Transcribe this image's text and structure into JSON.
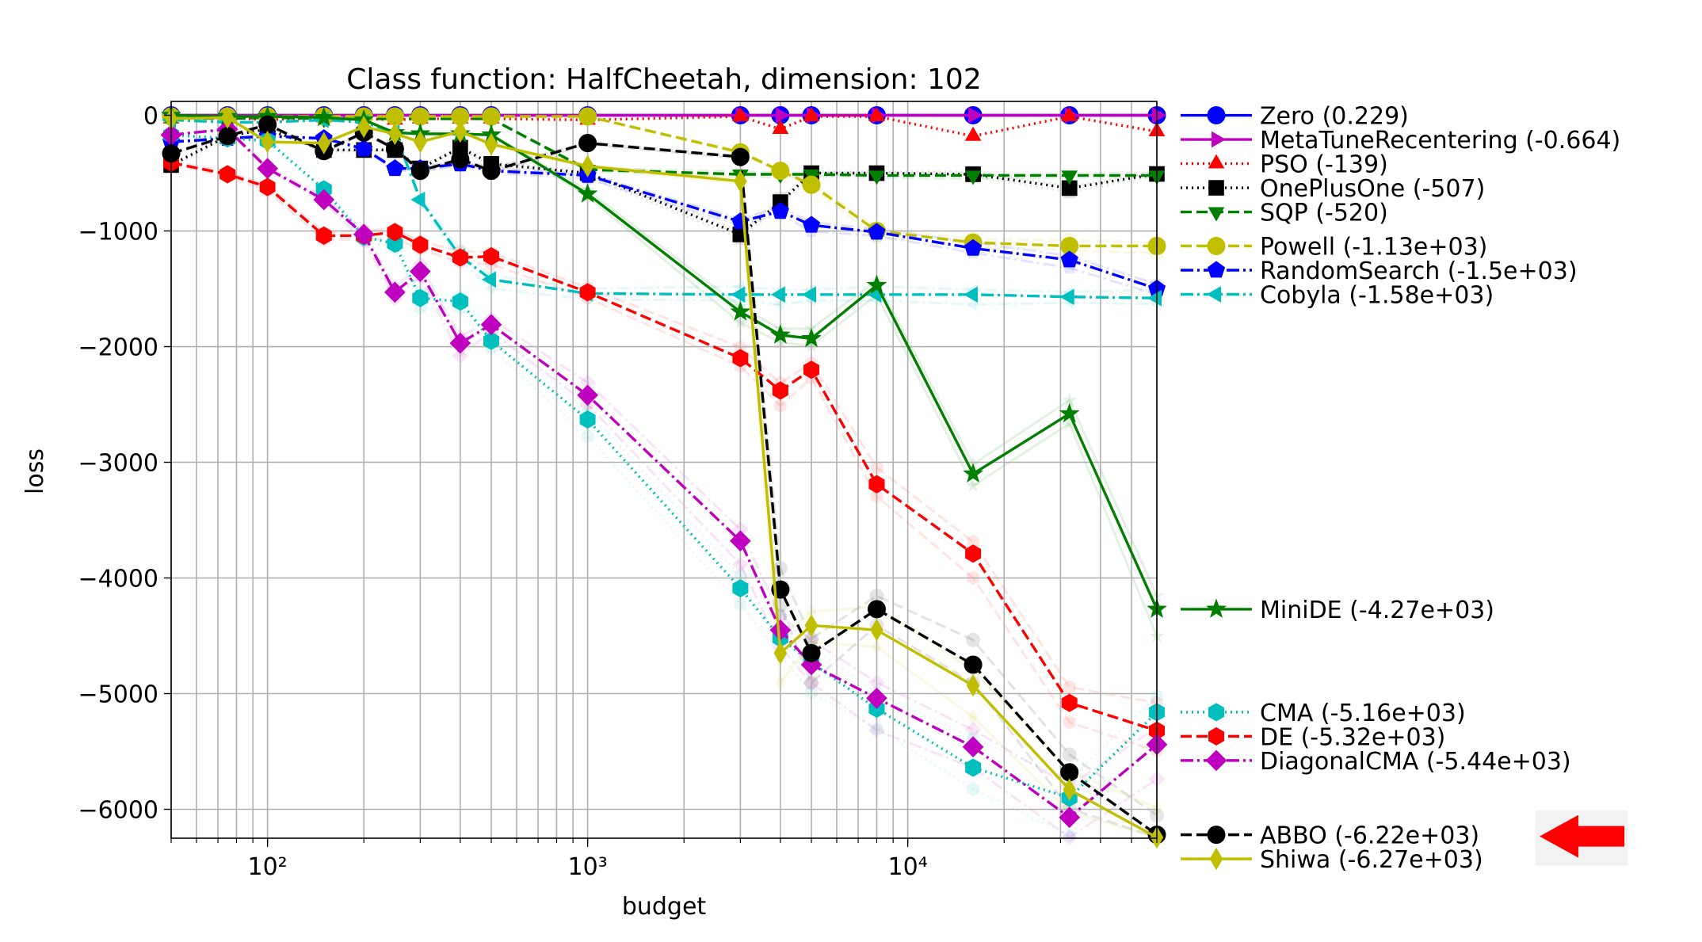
{
  "chart_data": {
    "type": "line",
    "title": "Class function: HalfCheetah, dimension: 102",
    "xlabel": "budget",
    "ylabel": "loss",
    "x_scale": "log",
    "xlim": [
      50,
      60000
    ],
    "ylim": [
      -6250,
      120
    ],
    "grid": true,
    "legend_placement": "outside-right",
    "x_major_ticks": [
      {
        "value": 100,
        "label": "10²"
      },
      {
        "value": 1000,
        "label": "10³"
      },
      {
        "value": 10000,
        "label": "10⁴"
      }
    ],
    "y_ticks": [
      {
        "value": 0,
        "label": "0"
      },
      {
        "value": -1000,
        "label": "−1000"
      },
      {
        "value": -2000,
        "label": "−2000"
      },
      {
        "value": -3000,
        "label": "−3000"
      },
      {
        "value": -4000,
        "label": "−4000"
      },
      {
        "value": -5000,
        "label": "−5000"
      },
      {
        "value": -6000,
        "label": "−6000"
      }
    ],
    "series": [
      {
        "name": "Zero (0.229)",
        "color": "#0000ff",
        "dash": "",
        "marker": "circle",
        "x": [
          50,
          75,
          100,
          150,
          200,
          250,
          300,
          400,
          500,
          1000,
          3000,
          4000,
          5000,
          8000,
          16000,
          32000,
          60000
        ],
        "y": [
          0,
          0,
          0,
          0,
          0,
          0,
          0,
          0,
          0,
          0,
          0,
          0,
          0,
          0,
          0,
          0,
          0
        ]
      },
      {
        "name": "MetaTuneRecentering (-0.664)",
        "color": "#bf00bf",
        "dash": "",
        "marker": "triangle-right",
        "x": [
          50,
          75,
          100,
          150,
          200,
          250,
          300,
          400,
          500,
          1000,
          3000,
          4000,
          5000,
          8000,
          16000,
          32000,
          60000
        ],
        "y": [
          0,
          0,
          0,
          0,
          0,
          0,
          0,
          0,
          0,
          0,
          0,
          0,
          0,
          0,
          0,
          0,
          0
        ]
      },
      {
        "name": "PSO (-139)",
        "color": "#ff0000",
        "dash": "2,5",
        "marker": "triangle-up",
        "x": [
          50,
          75,
          100,
          150,
          200,
          250,
          300,
          400,
          500,
          1000,
          3000,
          4000,
          5000,
          8000,
          16000,
          32000,
          60000
        ],
        "y": [
          -30,
          -20,
          -40,
          -20,
          -30,
          -40,
          -30,
          -30,
          -30,
          -40,
          -10,
          -120,
          -10,
          -10,
          -180,
          -10,
          -140
        ]
      },
      {
        "name": "OnePlusOne (-507)",
        "color": "#000000",
        "dash": "2,5",
        "marker": "square",
        "x": [
          50,
          75,
          100,
          150,
          200,
          250,
          300,
          400,
          500,
          1000,
          3000,
          4000,
          5000,
          8000,
          16000,
          32000,
          60000
        ],
        "y": [
          -430,
          -180,
          -120,
          -300,
          -300,
          -300,
          -460,
          -280,
          -420,
          -500,
          -1030,
          -750,
          -500,
          -500,
          -510,
          -630,
          -507
        ]
      },
      {
        "name": "SQP (-520)",
        "color": "#007f00",
        "dash": "14,6",
        "marker": "triangle-down",
        "x": [
          50,
          75,
          100,
          150,
          200,
          250,
          300,
          400,
          500,
          1000,
          3000,
          4000,
          5000,
          8000,
          16000,
          32000,
          60000
        ],
        "y": [
          -20,
          -30,
          -20,
          -30,
          -30,
          -30,
          -30,
          -30,
          -30,
          -470,
          -510,
          -510,
          -510,
          -520,
          -520,
          -520,
          -520
        ]
      },
      {
        "name": "Powell (-1.13e+03)",
        "color": "#bfbf00",
        "dash": "14,6",
        "marker": "circle",
        "x": [
          50,
          75,
          100,
          150,
          200,
          250,
          300,
          400,
          500,
          1000,
          3000,
          4000,
          5000,
          8000,
          16000,
          32000,
          60000
        ],
        "y": [
          -10,
          -10,
          -10,
          -10,
          -10,
          -10,
          -10,
          -10,
          -10,
          -10,
          -320,
          -480,
          -600,
          -1000,
          -1100,
          -1130,
          -1130
        ]
      },
      {
        "name": "RandomSearch (-1.5e+03)",
        "color": "#0000ff",
        "dash": "16,5,3,5",
        "marker": "pentagon",
        "x": [
          50,
          75,
          100,
          150,
          200,
          250,
          300,
          400,
          500,
          1000,
          3000,
          4000,
          5000,
          8000,
          16000,
          32000,
          60000
        ],
        "y": [
          -230,
          -200,
          -180,
          -200,
          -290,
          -460,
          -460,
          -420,
          -480,
          -520,
          -920,
          -830,
          -950,
          -1010,
          -1150,
          -1250,
          -1500
        ]
      },
      {
        "name": "Cobyla (-1.58e+03)",
        "color": "#00bfbf",
        "dash": "16,5,3,5",
        "marker": "triangle-left",
        "x": [
          50,
          75,
          100,
          150,
          200,
          250,
          300,
          400,
          500,
          1000,
          3000,
          4000,
          5000,
          8000,
          16000,
          32000,
          60000
        ],
        "y": [
          -40,
          -60,
          -60,
          -40,
          -60,
          -150,
          -730,
          -1220,
          -1420,
          -1540,
          -1550,
          -1550,
          -1550,
          -1550,
          -1550,
          -1570,
          -1580
        ]
      },
      {
        "name": "MiniDE (-4.27e+03)",
        "color": "#007f00",
        "dash": "",
        "marker": "star",
        "x": [
          50,
          75,
          100,
          150,
          200,
          250,
          300,
          400,
          500,
          1000,
          3000,
          4000,
          5000,
          8000,
          16000,
          32000,
          60000
        ],
        "y": [
          0,
          -10,
          -10,
          -20,
          -40,
          -150,
          -160,
          -160,
          -170,
          -680,
          -1700,
          -1900,
          -1930,
          -1470,
          -3100,
          -2580,
          -4270
        ]
      },
      {
        "name": "CMA (-5.16e+03)",
        "color": "#00bfbf",
        "dash": "2,5",
        "marker": "hexagon",
        "x": [
          50,
          75,
          100,
          150,
          200,
          250,
          300,
          400,
          500,
          1000,
          3000,
          4000,
          5000,
          8000,
          16000,
          32000,
          60000
        ],
        "y": [
          -170,
          -200,
          -220,
          -640,
          -1050,
          -1110,
          -1580,
          -1610,
          -1950,
          -2630,
          -4090,
          -4520,
          -4730,
          -5130,
          -5640,
          -5900,
          -5160
        ]
      },
      {
        "name": "DE (-5.32e+03)",
        "color": "#ff0000",
        "dash": "14,6",
        "marker": "hexagon",
        "x": [
          50,
          75,
          100,
          150,
          200,
          250,
          300,
          400,
          500,
          1000,
          3000,
          4000,
          5000,
          8000,
          16000,
          32000,
          60000
        ],
        "y": [
          -410,
          -510,
          -620,
          -1040,
          -1040,
          -1010,
          -1120,
          -1230,
          -1220,
          -1530,
          -2100,
          -2380,
          -2200,
          -3190,
          -3790,
          -5080,
          -5320
        ]
      },
      {
        "name": "DiagonalCMA (-5.44e+03)",
        "color": "#bf00bf",
        "dash": "16,5,3,5",
        "marker": "diamond",
        "x": [
          50,
          75,
          100,
          150,
          200,
          250,
          300,
          400,
          500,
          1000,
          3000,
          4000,
          5000,
          8000,
          16000,
          32000,
          60000
        ],
        "y": [
          -170,
          -120,
          -460,
          -730,
          -1030,
          -1530,
          -1350,
          -1970,
          -1810,
          -2420,
          -3680,
          -4450,
          -4750,
          -5040,
          -5460,
          -6070,
          -5440
        ]
      },
      {
        "name": "ABBO (-6.22e+03)",
        "color": "#000000",
        "dash": "14,6",
        "marker": "circle",
        "x": [
          50,
          75,
          100,
          150,
          200,
          250,
          300,
          400,
          500,
          1000,
          3000,
          4000,
          5000,
          8000,
          16000,
          32000,
          60000
        ],
        "y": [
          -330,
          -180,
          -80,
          -310,
          -150,
          -290,
          -480,
          -380,
          -480,
          -240,
          -360,
          -4100,
          -4650,
          -4270,
          -4750,
          -5680,
          -6220
        ]
      },
      {
        "name": "Shiwa (-6.27e+03)",
        "color": "#bfbf00",
        "dash": "",
        "marker": "thin-diamond",
        "x": [
          50,
          75,
          100,
          150,
          200,
          250,
          300,
          400,
          500,
          1000,
          3000,
          4000,
          5000,
          8000,
          16000,
          32000,
          60000
        ],
        "y": [
          -30,
          -20,
          -230,
          -240,
          -100,
          -160,
          -230,
          -140,
          -250,
          -440,
          -570,
          -4650,
          -4410,
          -4450,
          -4930,
          -5830,
          -6270
        ]
      }
    ]
  },
  "legend": {
    "groups": [
      {
        "y_value": 0,
        "labels": [
          "Zero (0.229)",
          "MetaTuneRecentering (-0.664)",
          "PSO (-139)",
          "OnePlusOne (-507)",
          "SQP (-520)"
        ]
      },
      {
        "y_value": -1130,
        "labels": [
          "Powell (-1.13e+03)",
          "RandomSearch (-1.5e+03)",
          "Cobyla (-1.58e+03)"
        ]
      },
      {
        "y_value": -4270,
        "labels": [
          "MiniDE (-4.27e+03)"
        ]
      },
      {
        "y_value": -5160,
        "labels": [
          "CMA (-5.16e+03)",
          "DE (-5.32e+03)",
          "DiagonalCMA (-5.44e+03)"
        ]
      },
      {
        "y_value": -6220,
        "labels": [
          "ABBO (-6.22e+03)",
          "Shiwa (-6.27e+03)"
        ]
      }
    ],
    "highlight_arrow_color": "#ff0000",
    "highlight_target": "ABBO (-6.22e+03)"
  }
}
